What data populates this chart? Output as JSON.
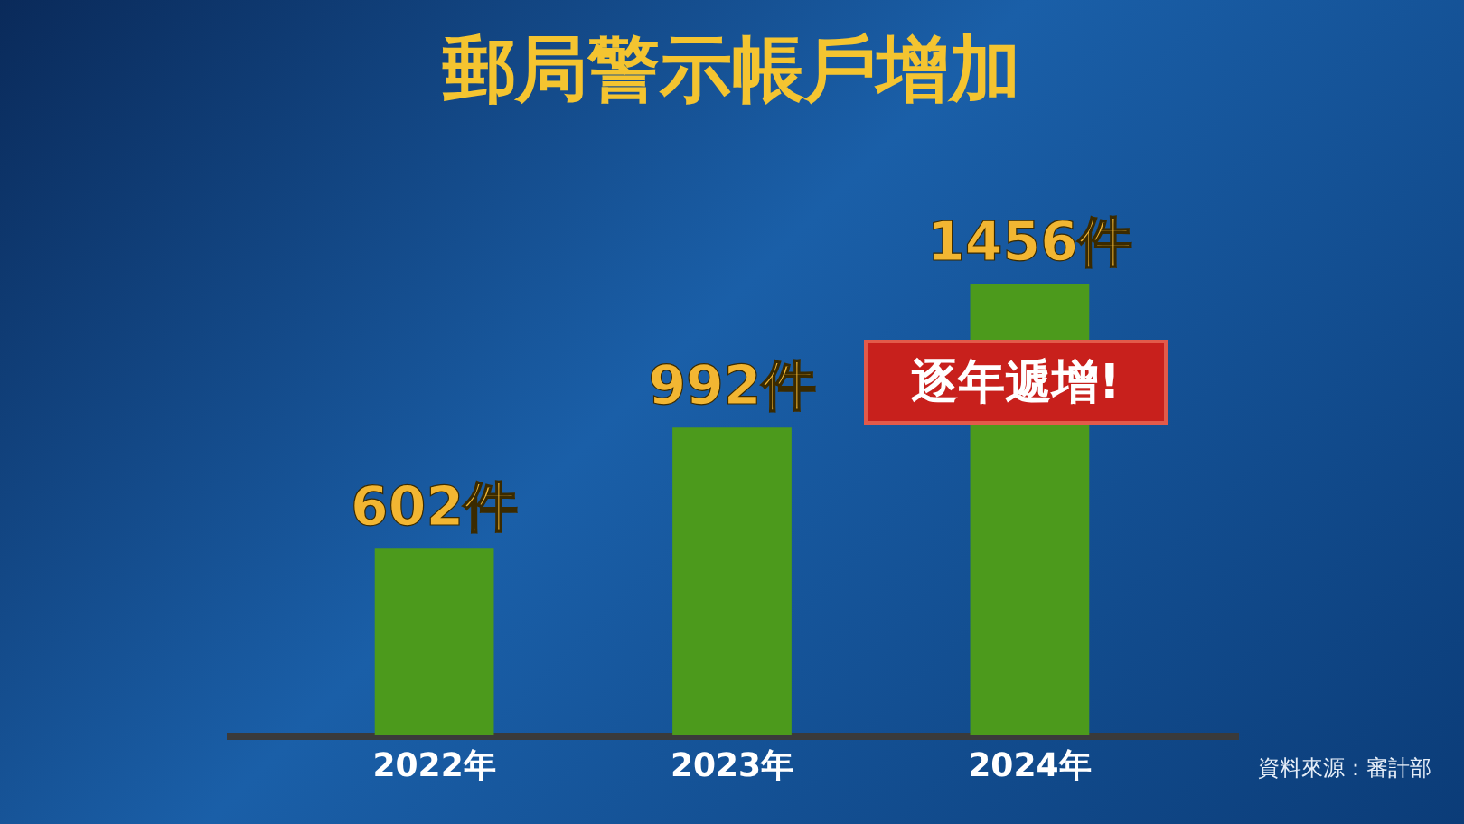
{
  "chart_data": {
    "type": "bar",
    "title": "郵局警示帳戶增加",
    "categories": [
      "2022年",
      "2023年",
      "2024年"
    ],
    "values": [
      602,
      992,
      1456
    ],
    "value_labels": [
      "602件",
      "992件",
      "1456件"
    ],
    "color": "#4c9a1c",
    "annotations": [
      "逐年遞增!",
      "資料來源：審計部"
    ]
  }
}
